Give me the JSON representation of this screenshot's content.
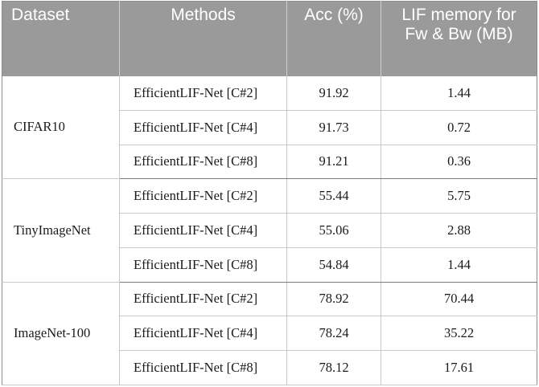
{
  "table": {
    "headers": {
      "dataset": "Dataset",
      "methods": "Methods",
      "acc": "Acc (%)",
      "memory": "LIF memory for Fw & Bw (MB)"
    },
    "groups": [
      {
        "dataset": "CIFAR10",
        "rows": [
          {
            "method": "EfficientLIF-Net [C#2]",
            "acc": "91.92",
            "memory": "1.44"
          },
          {
            "method": "EfficientLIF-Net [C#4]",
            "acc": "91.73",
            "memory": "0.72"
          },
          {
            "method": "EfficientLIF-Net [C#8]",
            "acc": "91.21",
            "memory": "0.36"
          }
        ]
      },
      {
        "dataset": "TinyImageNet",
        "rows": [
          {
            "method": "EfficientLIF-Net [C#2]",
            "acc": "55.44",
            "memory": "5.75"
          },
          {
            "method": "EfficientLIF-Net [C#4]",
            "acc": "55.06",
            "memory": "2.88"
          },
          {
            "method": "EfficientLIF-Net [C#8]",
            "acc": "54.84",
            "memory": "1.44"
          }
        ]
      },
      {
        "dataset": "ImageNet-100",
        "rows": [
          {
            "method": "EfficientLIF-Net [C#2]",
            "acc": "78.92",
            "memory": "70.44"
          },
          {
            "method": "EfficientLIF-Net [C#4]",
            "acc": "78.24",
            "memory": "35.22"
          },
          {
            "method": "EfficientLIF-Net [C#8]",
            "acc": "78.12",
            "memory": "17.61"
          }
        ]
      }
    ]
  }
}
